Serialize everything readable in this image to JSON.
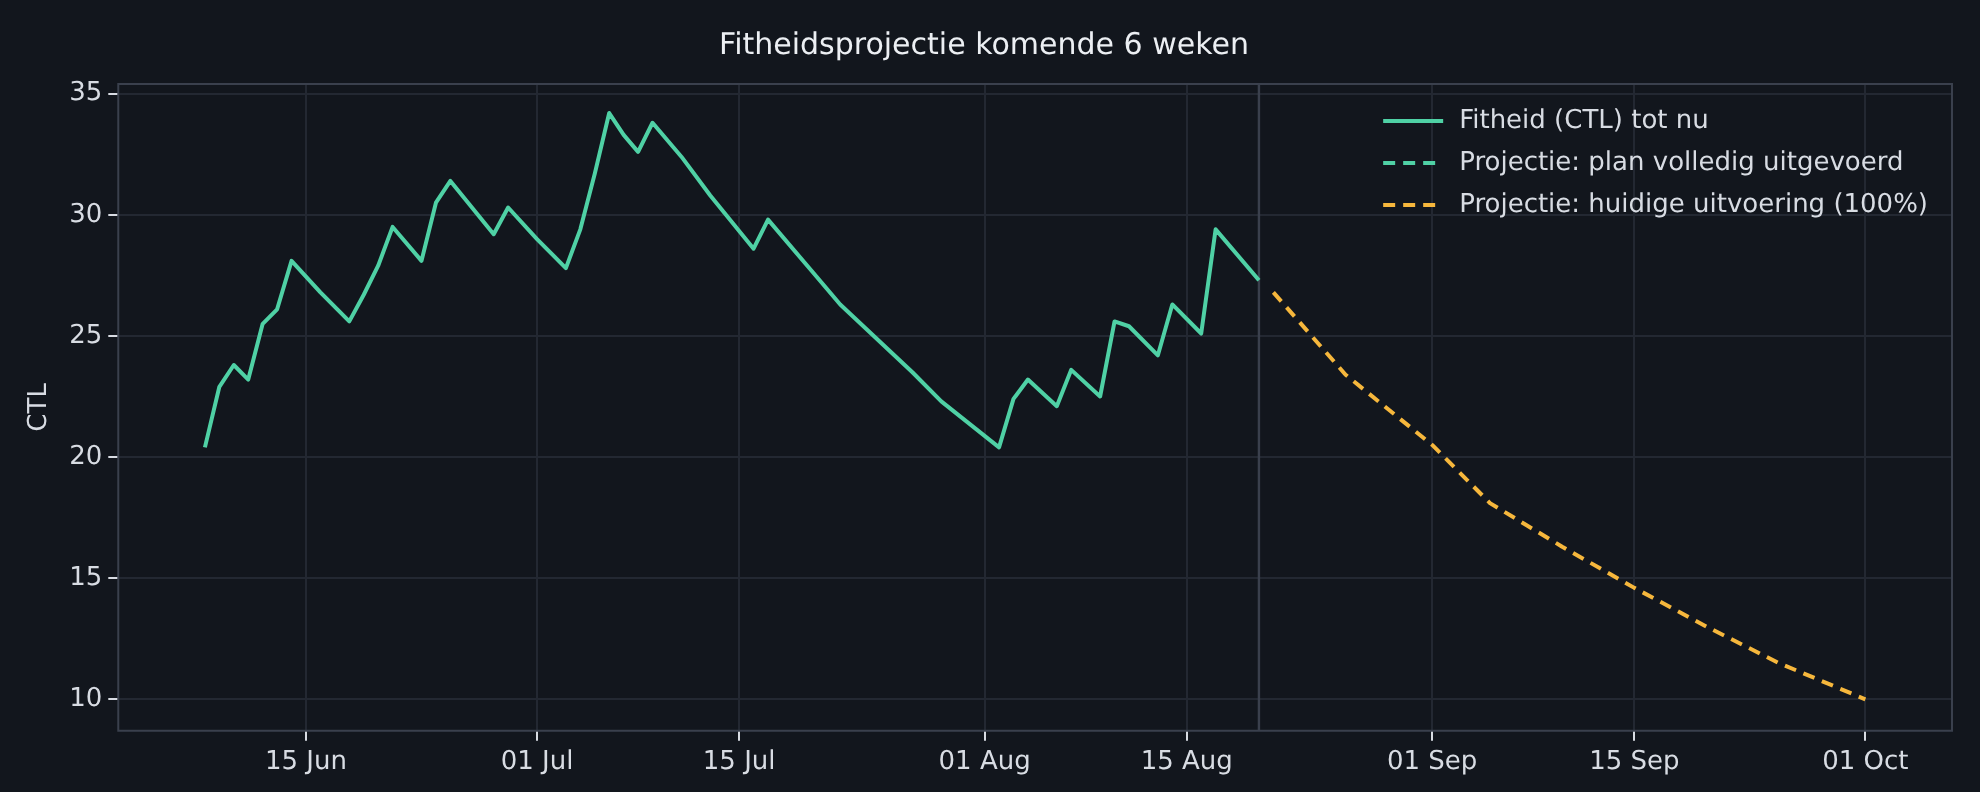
{
  "chart_data": {
    "type": "line",
    "title": "Fitheidsprojectie komende 6 weken",
    "ylabel": "CTL",
    "xlim": [
      "--06-02",
      "--10-07"
    ],
    "xticks": [
      {
        "value": "--06-15",
        "label": "15 Jun"
      },
      {
        "value": "--07-01",
        "label": "01 Jul"
      },
      {
        "value": "--07-15",
        "label": "15 Jul"
      },
      {
        "value": "--08-01",
        "label": "01 Aug"
      },
      {
        "value": "--08-15",
        "label": "15 Aug"
      },
      {
        "value": "--09-01",
        "label": "01 Sep"
      },
      {
        "value": "--09-15",
        "label": "15 Sep"
      },
      {
        "value": "--10-01",
        "label": "01 Oct"
      }
    ],
    "ylim": [
      8.7,
      35.4
    ],
    "yticks": [
      10,
      15,
      20,
      25,
      30,
      35
    ],
    "grid": true,
    "legend": "top right",
    "marker": "none",
    "ref_lines": [
      {
        "axis": "x",
        "value": "--08-20",
        "label": null,
        "color": "#3a404d"
      }
    ],
    "series": [
      {
        "name": "Fitheid (CTL) tot nu",
        "color": "#4fd1a5",
        "line_style": "solid",
        "x": [
          "--06-08",
          "--06-09",
          "--06-10",
          "--06-11",
          "--06-12",
          "--06-13",
          "--06-14",
          "--06-16",
          "--06-18",
          "--06-19",
          "--06-20",
          "--06-21",
          "--06-23",
          "--06-24",
          "--06-25",
          "--06-28",
          "--06-29",
          "--07-01",
          "--07-03",
          "--07-04",
          "--07-05",
          "--07-06",
          "--07-07",
          "--07-08",
          "--07-09",
          "--07-11",
          "--07-13",
          "--07-16",
          "--07-17",
          "--07-20",
          "--07-22",
          "--07-27",
          "--07-29",
          "--08-02",
          "--08-03",
          "--08-04",
          "--08-06",
          "--08-07",
          "--08-09",
          "--08-10",
          "--08-11",
          "--08-13",
          "--08-14",
          "--08-16",
          "--08-17",
          "--08-20"
        ],
        "values": [
          20.4,
          22.9,
          23.8,
          23.2,
          25.5,
          26.1,
          28.1,
          26.8,
          25.6,
          26.7,
          27.9,
          29.5,
          28.1,
          30.5,
          31.4,
          29.2,
          30.3,
          29.0,
          27.8,
          29.4,
          31.7,
          34.2,
          33.3,
          32.6,
          33.8,
          32.4,
          30.8,
          28.6,
          29.8,
          27.7,
          26.3,
          23.5,
          22.3,
          20.4,
          22.4,
          23.2,
          22.1,
          23.6,
          22.5,
          25.6,
          25.4,
          24.2,
          26.3,
          25.1,
          29.4,
          27.3
        ]
      },
      {
        "name": "Projectie: plan volledig uitgevoerd",
        "color": "#4fd1a5",
        "line_style": "dashed"
      },
      {
        "name": "Projectie: huidige uitvoering (100%)",
        "color": "#f6b73c",
        "line_style": "dashed",
        "x": [
          "--08-21",
          "--08-26",
          "--09-01",
          "--09-05",
          "--09-10",
          "--09-15",
          "--09-20",
          "--09-25",
          "--10-01"
        ],
        "values": [
          26.8,
          23.4,
          20.5,
          18.1,
          16.3,
          14.6,
          13.0,
          11.5,
          10.0
        ]
      }
    ]
  }
}
